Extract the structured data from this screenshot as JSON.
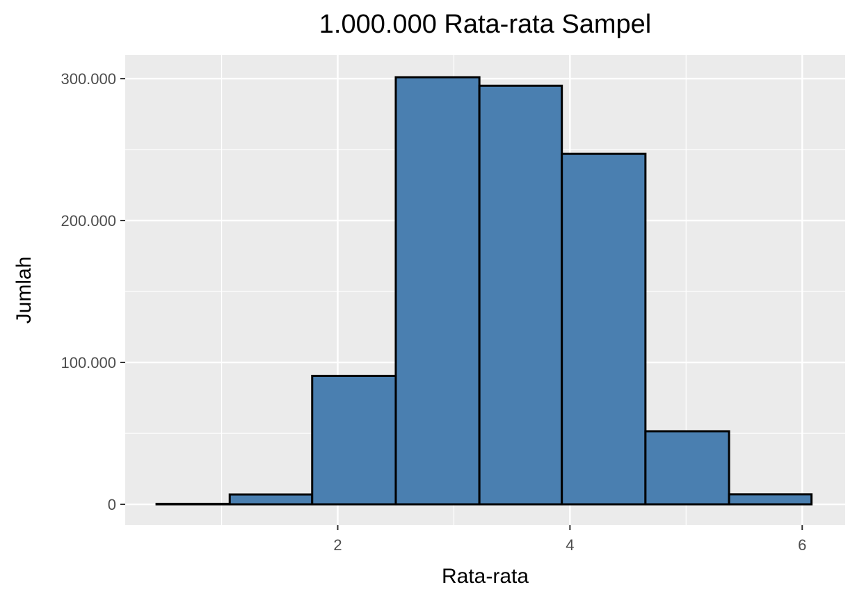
{
  "chart_data": {
    "type": "bar",
    "subtype": "histogram",
    "title": "1.000.000 Rata-rata Sampel",
    "xlabel": "Rata-rata",
    "ylabel": "Jumlah",
    "bin_edges": [
      0.44,
      1.07,
      1.78,
      2.5,
      3.22,
      3.93,
      4.65,
      5.37,
      6.08
    ],
    "categories": [
      "0.44–1.07",
      "1.07–1.78",
      "1.78–2.50",
      "2.50–3.22",
      "3.22–3.93",
      "3.93–4.65",
      "4.65–5.37",
      "5.37–6.08"
    ],
    "values": [
      300,
      6900,
      90500,
      301000,
      295000,
      247000,
      51500,
      7000
    ],
    "xlim": [
      0.17,
      6.37
    ],
    "ylim": [
      -14700,
      316700
    ],
    "x_ticks": [
      2,
      4,
      6
    ],
    "x_tick_labels": [
      "2",
      "4",
      "6"
    ],
    "y_ticks": [
      0,
      100000,
      200000,
      300000
    ],
    "y_tick_labels": [
      "0",
      "100.000",
      "200.000",
      "300.000"
    ],
    "grid": true,
    "legend": "none",
    "bar_fill": "#4a7fb0",
    "bar_edge": "#000000",
    "panel_background": "#ebebeb",
    "grid_color": "#ffffff"
  }
}
